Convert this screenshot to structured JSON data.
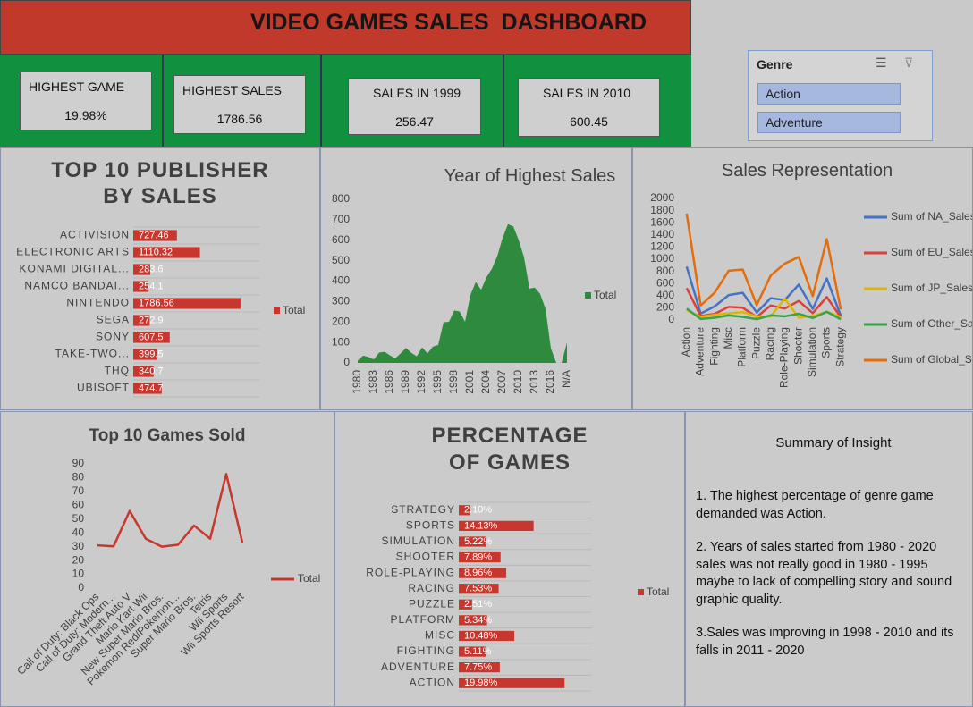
{
  "header": {
    "title": "VIDEO GAMES SALES  DASHBOARD"
  },
  "kpis": [
    {
      "label": "HIGHEST GAME",
      "value": "19.98%"
    },
    {
      "label": "HIGHEST SALES",
      "value": "1786.56"
    },
    {
      "label": "SALES IN 1999",
      "value": "256.47"
    },
    {
      "label": "SALES IN 2010",
      "value": "600.45"
    }
  ],
  "slicer": {
    "title": "Genre",
    "items": [
      "Action",
      "Adventure"
    ]
  },
  "summary": {
    "title": "Summary of Insight",
    "paragraphs": [
      "1. The highest percentage of  genre game demanded  was Action.",
      "2. Years of sales started from 1980 - 2020 sales was not really good in 1980 - 1995 maybe to lack of compelling story and sound graphic quality.",
      "3.Sales was improving in 1998 - 2010 and its falls in 2011 - 2020"
    ]
  },
  "chart_data": [
    {
      "type": "bar",
      "orientation": "horizontal",
      "title": "TOP 10 PUBLISHER BY SALES",
      "categories": [
        "ACTIVISION",
        "ELECTRONIC ARTS",
        "KONAMI DIGITAL...",
        "NAMCO BANDAI...",
        "NINTENDO",
        "SEGA",
        "SONY",
        "TAKE-TWO...",
        "THQ",
        "UBISOFT"
      ],
      "series": [
        {
          "name": "Total",
          "color": "#c8372d",
          "values": [
            727.46,
            1110.32,
            283.6,
            254.1,
            1786.56,
            272.9,
            607.5,
            399.5,
            340.7,
            474.7
          ],
          "value_labels": [
            "727.46",
            "1110.32",
            "283.6",
            "254.1",
            "1786.56",
            "272.9",
            "607.5",
            "399.5",
            "340.7",
            "474.7"
          ]
        }
      ],
      "xlim": [
        0,
        2100
      ]
    },
    {
      "type": "area",
      "title": "Year of Highest Sales",
      "categories": [
        "1980",
        null,
        null,
        "1983",
        null,
        null,
        "1986",
        null,
        null,
        "1989",
        null,
        null,
        "1992",
        null,
        null,
        "1995",
        null,
        null,
        "1998",
        null,
        null,
        "2001",
        null,
        null,
        "2004",
        null,
        null,
        "2007",
        null,
        null,
        "2010",
        null,
        null,
        "2013",
        null,
        null,
        "2016",
        null,
        null,
        "N/A"
      ],
      "series": [
        {
          "name": "Total",
          "color": "#2e8b3e",
          "values": [
            11.38,
            35.77,
            28.86,
            16.79,
            50.36,
            53.94,
            37.07,
            21.74,
            47.22,
            73.45,
            49.39,
            32.23,
            76.16,
            45.98,
            79.17,
            88.11,
            199.15,
            200.98,
            256.47,
            251.27,
            201.56,
            331.47,
            395.52,
            357.85,
            419.31,
            459.94,
            521.04,
            611.13,
            678.9,
            667.3,
            600.45,
            515.99,
            363.54,
            368.11,
            337.05,
            264.44,
            70.93,
            0.05,
            0.29,
            100.08
          ]
        }
      ],
      "ylim": [
        0,
        800
      ],
      "yticks": [
        0,
        100,
        200,
        300,
        400,
        500,
        600,
        700,
        800
      ]
    },
    {
      "type": "line",
      "title": "Sales Representation",
      "categories": [
        "Action",
        "Adventure",
        "Fighting",
        "Misc",
        "Platform",
        "Puzzle",
        "Racing",
        "Role-Playing",
        "Shooter",
        "Simulation",
        "Sports",
        "Strategy"
      ],
      "series": [
        {
          "name": "Sum of NA_Sales",
          "color": "#4472c4",
          "values": [
            877.83,
            105.8,
            223.59,
            410.24,
            447.05,
            123.78,
            359.42,
            327.28,
            582.6,
            183.31,
            683.35,
            68.7
          ]
        },
        {
          "name": "Sum of EU_Sales",
          "color": "#d9413a",
          "values": [
            525.0,
            64.13,
            101.32,
            215.98,
            201.63,
            50.78,
            238.39,
            188.06,
            313.27,
            113.38,
            376.85,
            45.34
          ]
        },
        {
          "name": "Sum of JP_Sales",
          "color": "#e0b400",
          "values": [
            159.95,
            52.07,
            87.35,
            107.76,
            130.77,
            57.31,
            56.69,
            352.31,
            38.28,
            63.7,
            135.37,
            49.46
          ]
        },
        {
          "name": "Sum of Other_Sales",
          "color": "#3aa34a",
          "values": [
            187.38,
            16.81,
            36.68,
            75.32,
            51.59,
            12.55,
            77.27,
            59.61,
            102.69,
            31.52,
            134.97,
            11.36
          ]
        },
        {
          "name": "Sum of Global_Sales",
          "color": "#e46c0a",
          "values": [
            1751.18,
            239.04,
            448.91,
            809.96,
            831.37,
            244.95,
            732.04,
            927.37,
            1037.37,
            392.2,
            1330.93,
            175.12
          ]
        }
      ],
      "ylim": [
        0,
        2000
      ],
      "yticks": [
        0,
        200,
        400,
        600,
        800,
        1000,
        1200,
        1400,
        1600,
        1800,
        2000
      ]
    },
    {
      "type": "line",
      "title": "Top 10 Games Sold",
      "categories": [
        "Call of Duty: Black Ops",
        "Call of Duty: Modern...",
        "Grand Theft Auto V",
        "Mario Kart Wii",
        "New Super Mario Bros.",
        "Pokemon Red/Pokemon...",
        "Super Mario Bros.",
        "Tetris",
        "Wii Sports",
        "Wii Sports Resort"
      ],
      "series": [
        {
          "name": "Total",
          "color": "#c8372d",
          "values": [
            31,
            30.3,
            55.9,
            35.8,
            30,
            31.4,
            45.3,
            35.8,
            82.7,
            33
          ]
        }
      ],
      "ylim": [
        0,
        90
      ],
      "yticks": [
        0,
        10,
        20,
        30,
        40,
        50,
        60,
        70,
        80,
        90
      ]
    },
    {
      "type": "bar",
      "orientation": "horizontal",
      "title": "PERCENTAGE OF GAMES",
      "categories": [
        "STRATEGY",
        "SPORTS",
        "SIMULATION",
        "SHOOTER",
        "ROLE-PLAYING",
        "RACING",
        "PUZZLE",
        "PLATFORM",
        "MISC",
        "FIGHTING",
        "ADVENTURE",
        "ACTION"
      ],
      "series": [
        {
          "name": "Total",
          "color": "#c8372d",
          "values": [
            2.1,
            14.13,
            5.22,
            7.89,
            8.96,
            7.53,
            2.51,
            5.34,
            10.48,
            5.11,
            7.75,
            19.98
          ],
          "value_labels": [
            "2.10%",
            "14.13%",
            "5.22%",
            "7.89%",
            "8.96%",
            "7.53%",
            "2.51%",
            "5.34%",
            "10.48%",
            "5.11%",
            "7.75%",
            "19.98%"
          ]
        }
      ],
      "xlim": [
        0,
        25
      ]
    }
  ]
}
